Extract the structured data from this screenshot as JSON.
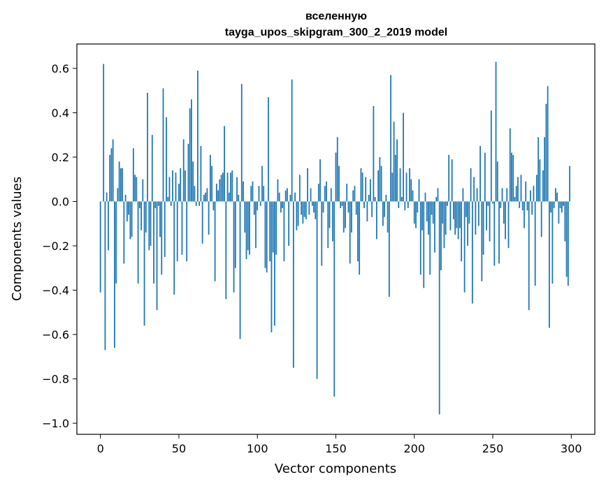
{
  "chart_data": {
    "type": "bar",
    "title": "вселенную",
    "subtitle": "tayga_upos_skipgram_300_2_2019 model",
    "xlabel": "Vector components",
    "ylabel": "Components values",
    "xlim": [
      -15,
      315
    ],
    "ylim": [
      -1.05,
      0.71
    ],
    "xticks": [
      0,
      50,
      100,
      150,
      200,
      250,
      300
    ],
    "xtick_labels": [
      "0",
      "50",
      "100",
      "150",
      "200",
      "250",
      "300"
    ],
    "yticks": [
      -1.0,
      -0.8,
      -0.6,
      -0.4,
      -0.2,
      0.0,
      0.2,
      0.4,
      0.6
    ],
    "ytick_labels": [
      "−1.0",
      "−0.8",
      "−0.6",
      "−0.4",
      "−0.2",
      "0.0",
      "0.2",
      "0.4",
      "0.6"
    ],
    "grid": false,
    "bar_color": "#1f77b4",
    "values": [
      -0.41,
      0.0,
      0.62,
      -0.67,
      0.04,
      -0.22,
      0.21,
      0.24,
      0.28,
      -0.66,
      -0.37,
      0.06,
      0.18,
      0.15,
      0.15,
      -0.28,
      0.03,
      -0.09,
      -0.06,
      -0.17,
      -0.16,
      0.24,
      0.12,
      0.11,
      -0.37,
      -0.03,
      -0.13,
      0.1,
      -0.56,
      -0.14,
      0.49,
      -0.22,
      -0.2,
      0.3,
      -0.37,
      -0.03,
      -0.49,
      -0.02,
      -0.16,
      -0.33,
      0.51,
      -0.25,
      0.38,
      0.02,
      0.11,
      -0.02,
      0.14,
      -0.42,
      0.13,
      -0.27,
      0.08,
      0.15,
      -0.24,
      0.28,
      0.14,
      -0.27,
      0.26,
      0.42,
      0.46,
      0.18,
      0.07,
      -0.02,
      0.59,
      -0.02,
      0.25,
      -0.19,
      0.03,
      0.04,
      0.06,
      -0.15,
      0.21,
      0.16,
      -0.04,
      -0.36,
      0.08,
      0.05,
      0.1,
      0.12,
      0.13,
      0.34,
      -0.44,
      0.13,
      0.04,
      0.13,
      0.14,
      -0.41,
      -0.3,
      0.11,
      0.03,
      -0.62,
      0.53,
      0.09,
      -0.14,
      -0.26,
      -0.22,
      -0.24,
      0.07,
      0.09,
      -0.06,
      -0.21,
      -0.04,
      0.07,
      -0.02,
      0.16,
      0.07,
      -0.3,
      -0.32,
      0.47,
      -0.27,
      -0.59,
      -0.23,
      -0.56,
      -0.24,
      0.1,
      0.04,
      -0.05,
      -0.03,
      -0.27,
      0.05,
      0.06,
      -0.2,
      0.03,
      0.55,
      -0.75,
      0.04,
      -0.13,
      -0.11,
      0.12,
      -0.06,
      -0.1,
      -0.07,
      -0.08,
      0.15,
      -0.06,
      0.06,
      -0.02,
      -0.05,
      -0.08,
      -0.8,
      0.08,
      0.19,
      -0.29,
      -0.05,
      0.07,
      0.09,
      -0.21,
      -0.12,
      0.06,
      -0.18,
      -0.88,
      0.22,
      0.29,
      0.16,
      -0.03,
      -0.02,
      -0.14,
      -0.12,
      0.08,
      -0.05,
      -0.28,
      -0.14,
      0.05,
      0.07,
      -0.06,
      -0.27,
      -0.33,
      0.15,
      0.13,
      -0.03,
      0.11,
      -0.09,
      0.03,
      0.1,
      -0.07,
      0.43,
      0.02,
      -0.17,
      0.14,
      0.2,
      0.16,
      -0.11,
      -0.07,
      0.03,
      -0.14,
      -0.43,
      0.57,
      0.13,
      0.36,
      0.21,
      0.28,
      -0.03,
      0.15,
      0.02,
      0.4,
      -0.04,
      0.13,
      -0.03,
      0.15,
      0.1,
      0.05,
      -0.1,
      -0.12,
      -0.05,
      0.1,
      -0.33,
      -0.13,
      -0.39,
      0.04,
      -0.09,
      -0.15,
      -0.33,
      -0.06,
      -0.1,
      -0.23,
      0.02,
      0.06,
      -0.96,
      -0.31,
      -0.1,
      -0.21,
      -0.15,
      -0.02,
      0.21,
      -0.13,
      0.19,
      -0.08,
      -0.15,
      -0.12,
      -0.17,
      -0.12,
      -0.27,
      0.06,
      -0.41,
      -0.07,
      -0.2,
      -0.1,
      0.15,
      -0.46,
      0.11,
      -0.15,
      0.06,
      -0.11,
      0.25,
      -0.36,
      -0.24,
      0.22,
      -0.13,
      -0.02,
      -0.18,
      0.41,
      -0.01,
      -0.29,
      0.63,
      0.18,
      -0.28,
      -0.03,
      0.06,
      -0.1,
      -0.17,
      0.06,
      -0.21,
      0.33,
      0.22,
      0.21,
      0.02,
      0.07,
      0.11,
      -0.03,
      0.12,
      -0.04,
      -0.12,
      0.09,
      -0.04,
      -0.49,
      0.05,
      -0.06,
      0.07,
      -0.38,
      0.12,
      0.29,
      0.19,
      -0.16,
      0.14,
      0.29,
      0.44,
      0.52,
      -0.57,
      -0.05,
      -0.37,
      -0.03,
      0.06,
      0.04,
      -0.1,
      -0.03,
      -0.05,
      -0.02,
      -0.18,
      -0.34,
      -0.38,
      0.16
    ]
  }
}
